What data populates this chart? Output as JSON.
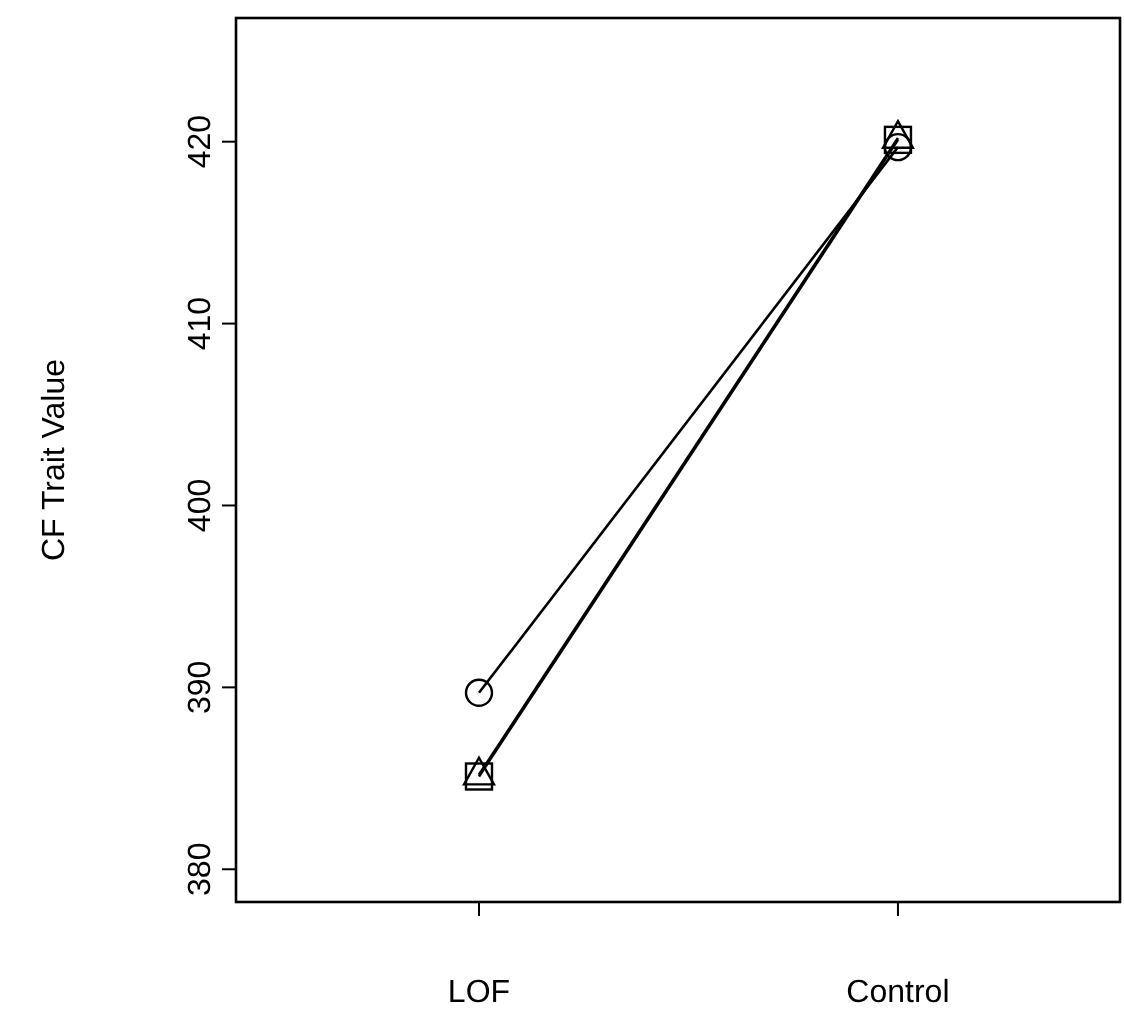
{
  "chart_data": {
    "type": "line",
    "ylabel": "CF Trait Value",
    "categories": [
      "LOF",
      "Control"
    ],
    "ylim": [
      378.2,
      426.8
    ],
    "yticks": [
      380,
      390,
      400,
      410,
      420
    ],
    "grid": false,
    "line_style": "solid",
    "series": [
      {
        "color": "#000000",
        "marker": "circle",
        "values": [
          389.7,
          419.7
        ]
      },
      {
        "color": "#000000",
        "marker": "square",
        "values": [
          385.1,
          420.1
        ]
      },
      {
        "color": "#000000",
        "marker": "triangle",
        "values": [
          385.2,
          420.2
        ]
      }
    ]
  }
}
